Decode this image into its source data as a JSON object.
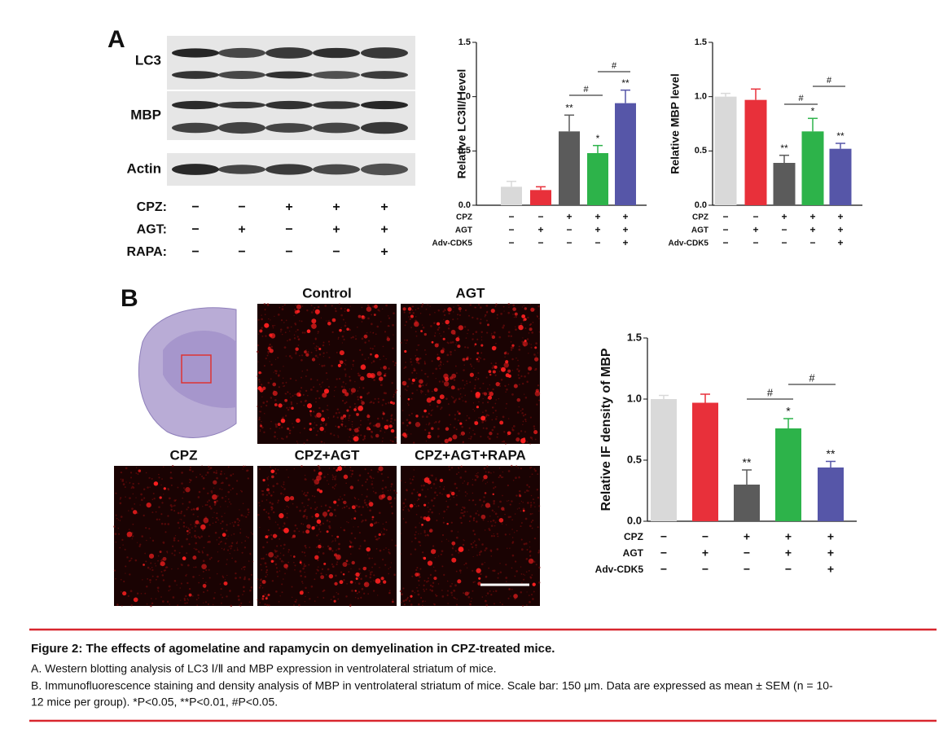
{
  "panel_a": {
    "letter": "A",
    "blot_labels": [
      "LC3",
      "MBP",
      "Actin"
    ],
    "treatments": [
      {
        "name": "CPZ:",
        "marks": [
          "−",
          "−",
          "+",
          "+",
          "+"
        ]
      },
      {
        "name": "AGT:",
        "marks": [
          "−",
          "+",
          "−",
          "+",
          "+"
        ]
      },
      {
        "name": "RAPA:",
        "marks": [
          "−",
          "−",
          "−",
          "−",
          "+"
        ]
      }
    ]
  },
  "panel_b": {
    "letter": "B",
    "image_titles": [
      "Control",
      "AGT",
      "CPZ",
      "CPZ+AGT",
      "CPZ+AGT+RAPA"
    ]
  },
  "chart_data": [
    {
      "type": "bar",
      "y_label": "Relative LC3II/I level",
      "ylim": [
        0,
        1.5
      ],
      "yticks": [
        {
          "value": 0,
          "label": "0.0"
        },
        0.5,
        {
          "value": 1,
          "label": "1.0"
        },
        1.5
      ],
      "colors": [
        "#d9d9d9",
        "#e8303a",
        "#5b5b5b",
        "#2db34a",
        "#5656a8"
      ],
      "values": [
        0.17,
        0.14,
        0.68,
        0.48,
        0.94
      ],
      "errors": [
        0.05,
        0.03,
        0.15,
        0.07,
        0.12
      ],
      "significance": [
        null,
        null,
        "**",
        "*",
        "**"
      ],
      "comparisons": [
        "#",
        "#"
      ],
      "conditions": [
        {
          "name": "CPZ",
          "marks": [
            "−",
            "−",
            "+",
            "+",
            "+"
          ]
        },
        {
          "name": "AGT",
          "marks": [
            "−",
            "+",
            "−",
            "+",
            "+"
          ]
        },
        {
          "name": "Adv-CDK5",
          "marks": [
            "−",
            "−",
            "−",
            "−",
            "+"
          ]
        }
      ]
    },
    {
      "type": "bar",
      "y_label": "Relative MBP level",
      "ylim": [
        0,
        1.5
      ],
      "yticks": [
        {
          "value": 0,
          "label": "0.0"
        },
        0.5,
        {
          "value": 1,
          "label": "1.0"
        },
        1.5
      ],
      "colors": [
        "#d9d9d9",
        "#e8303a",
        "#5b5b5b",
        "#2db34a",
        "#5656a8"
      ],
      "values": [
        1.0,
        0.97,
        0.39,
        0.68,
        0.52
      ],
      "errors": [
        0.03,
        0.1,
        0.07,
        0.12,
        0.05
      ],
      "significance": [
        null,
        null,
        "**",
        "*",
        "**"
      ],
      "comparisons": [
        "#",
        "#"
      ],
      "conditions": [
        {
          "name": "CPZ",
          "marks": [
            "−",
            "−",
            "+",
            "+",
            "+"
          ]
        },
        {
          "name": "AGT",
          "marks": [
            "−",
            "+",
            "−",
            "+",
            "+"
          ]
        },
        {
          "name": "Adv-CDK5",
          "marks": [
            "−",
            "−",
            "−",
            "−",
            "+"
          ]
        }
      ]
    },
    {
      "type": "bar",
      "y_label": "Relative IF density of MBP",
      "ylim": [
        0,
        1.5
      ],
      "yticks": [
        {
          "value": 0,
          "label": "0.0"
        },
        0.5,
        {
          "value": 1,
          "label": "1.0"
        },
        1.5
      ],
      "colors": [
        "#d9d9d9",
        "#e8303a",
        "#5b5b5b",
        "#2db34a",
        "#5656a8"
      ],
      "values": [
        1.0,
        0.97,
        0.3,
        0.76,
        0.44
      ],
      "errors": [
        0.03,
        0.07,
        0.12,
        0.08,
        0.05
      ],
      "significance": [
        null,
        null,
        "**",
        "*",
        "**"
      ],
      "comparisons": [
        "#",
        "#"
      ],
      "conditions": [
        {
          "name": "CPZ",
          "marks": [
            "−",
            "−",
            "+",
            "+",
            "+"
          ]
        },
        {
          "name": "AGT",
          "marks": [
            "−",
            "+",
            "−",
            "+",
            "+"
          ]
        },
        {
          "name": "Adv-CDK5",
          "marks": [
            "−",
            "−",
            "−",
            "−",
            "+"
          ]
        }
      ]
    }
  ],
  "caption": {
    "title": "Figure 2: The effects of agomelatine and rapamycin on demyelination in CPZ-treated mice.",
    "lines": [
      "A. Western blotting analysis of LC3 Ⅰ/Ⅱ and MBP expression in ventrolateral striatum of mice.",
      "B. Immunofluorescence staining and density analysis of MBP in ventrolateral striatum of mice. Scale bar: 150 μm. Data are expressed as mean ± SEM (n = 10-",
      "12 mice per group). *P<0.05, **P<0.01, #P<0.05."
    ]
  }
}
